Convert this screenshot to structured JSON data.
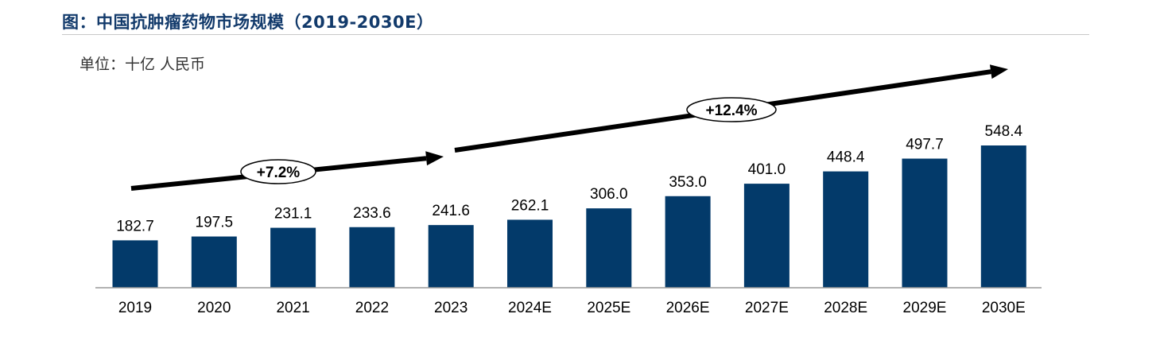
{
  "title": "图：中国抗肿瘤药物市场规模（2019-2030E）",
  "unit_label": "单位：十亿 人民币",
  "colors": {
    "bar": "#033a6a",
    "title": "#123a6b",
    "arrow": "#000000"
  },
  "chart_data": {
    "type": "bar",
    "title": "图：中国抗肿瘤药物市场规模（2019-2030E）",
    "ylabel": "单位：十亿 人民币",
    "xlabel": "",
    "categories": [
      "2019",
      "2020",
      "2021",
      "2022",
      "2023",
      "2024E",
      "2025E",
      "2026E",
      "2027E",
      "2028E",
      "2029E",
      "2030E"
    ],
    "values": [
      182.7,
      197.5,
      231.1,
      233.6,
      241.6,
      262.1,
      306.0,
      353.0,
      401.0,
      448.4,
      497.7,
      548.4
    ],
    "value_labels": [
      "182.7",
      "197.5",
      "231.1",
      "233.6",
      "241.6",
      "262.1",
      "306.0",
      "353.0",
      "401.0",
      "448.4",
      "497.7",
      "548.4"
    ],
    "ylim": [
      0,
      548.4
    ],
    "grid": false,
    "annotations": [
      {
        "label": "+7.2%",
        "from": "2019",
        "to": "2023"
      },
      {
        "label": "+12.4%",
        "from": "2024E",
        "to": "2030E"
      }
    ]
  }
}
